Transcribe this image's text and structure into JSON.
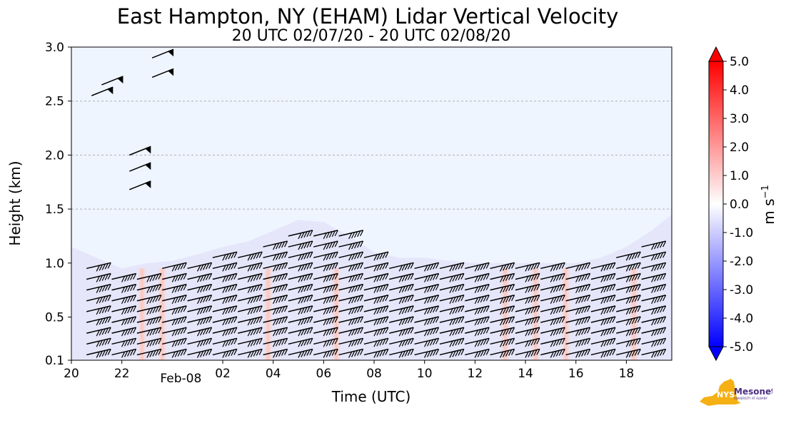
{
  "chart_data": {
    "type": "heatmap",
    "title": "East Hampton, NY (EHAM) Lidar Vertical Velocity",
    "subtitle": "20 UTC 02/07/20 - 20 UTC 02/08/20",
    "xlabel": "Time (UTC)",
    "ylabel": "Height (km)",
    "x_ticks": [
      "20",
      "22",
      "02",
      "04",
      "06",
      "08",
      "10",
      "12",
      "14",
      "16",
      "18"
    ],
    "x_tick_hours": [
      20,
      22,
      26,
      28,
      30,
      32,
      34,
      36,
      38,
      40,
      42
    ],
    "date_label": "Feb-08",
    "date_label_hour": 24,
    "xlim": [
      20,
      43.8
    ],
    "y_ticks": [
      "0.1",
      "0.5",
      "1.0",
      "1.5",
      "2.0",
      "2.5",
      "3.0"
    ],
    "y_tick_values": [
      0.1,
      0.5,
      1.0,
      1.5,
      2.0,
      2.5,
      3.0
    ],
    "ylim": [
      0.1,
      3.0
    ],
    "grid_y": [
      1.5,
      2.0,
      2.5
    ],
    "background_color": "#eef5ff",
    "colorbar": {
      "label": "m s",
      "label_superscript": "−1",
      "ticks": [
        "5.0",
        "4.0",
        "3.0",
        "2.0",
        "1.0",
        "0.0",
        "-1.0",
        "-2.0",
        "-3.0",
        "-4.0",
        "-5.0"
      ],
      "range": [
        -5.0,
        5.0
      ],
      "colormap": "bwr",
      "colors": [
        "#0000ff",
        "#ffffff",
        "#ff0000"
      ]
    },
    "cloud_base_km": [
      [
        20.0,
        1.15
      ],
      [
        21.0,
        1.05
      ],
      [
        22.0,
        0.95
      ],
      [
        23.0,
        1.0
      ],
      [
        24.0,
        1.02
      ],
      [
        25.0,
        1.08
      ],
      [
        26.0,
        1.15
      ],
      [
        27.0,
        1.2
      ],
      [
        28.0,
        1.3
      ],
      [
        29.0,
        1.4
      ],
      [
        30.0,
        1.38
      ],
      [
        31.0,
        1.25
      ],
      [
        32.0,
        1.1
      ],
      [
        33.0,
        1.05
      ],
      [
        34.0,
        1.05
      ],
      [
        35.0,
        1.02
      ],
      [
        36.0,
        1.0
      ],
      [
        37.0,
        1.0
      ],
      [
        38.0,
        1.0
      ],
      [
        39.0,
        1.0
      ],
      [
        40.0,
        1.0
      ],
      [
        41.0,
        1.05
      ],
      [
        42.0,
        1.15
      ],
      [
        43.0,
        1.3
      ],
      [
        43.8,
        1.45
      ]
    ],
    "warm_columns_hours": [
      22.8,
      23.6,
      27.8,
      30.5,
      37.2,
      38.4,
      39.6,
      42.3
    ]
  },
  "logo": {
    "text": "NYS",
    "brand": "Mesonet",
    "sub": "UNIVERSITY AT ALBANY",
    "colors": {
      "state": "#f5b014",
      "brand": "#4b2e83"
    }
  }
}
